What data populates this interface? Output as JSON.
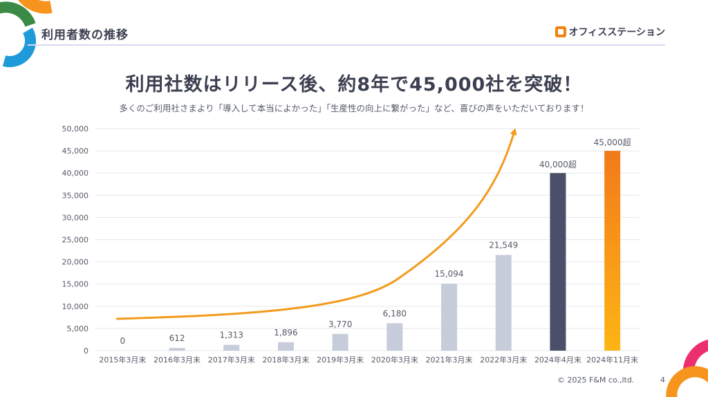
{
  "header": {
    "title": "利用者数の推移",
    "brand": "オフィスステーション"
  },
  "headline": "利用社数はリリース後、約8年で45,000社を突破！",
  "subline": "多くのご利用社さまより「導入して本当によかった」「生産性の向上に繋がった」など、喜びの声をいただいております！",
  "footer": {
    "copyright": "© 2025 F&M co.,ltd.",
    "page_number": "4"
  },
  "colors": {
    "bar_default": "#c7ccdb",
    "bar_2024_apr": "#4a5069",
    "bar_2024_nov_top": "#f27a1a",
    "bar_2024_nov_bottom": "#fdb515",
    "trend_arrow": "#f39a1a",
    "highlight_label": "#f08a2a",
    "text": "#3b3f50",
    "deco_orange": "#f7941d",
    "deco_green": "#3b8a45",
    "deco_blue": "#1f9ad8",
    "deco_pink": "#ec2f6e"
  },
  "chart_data": {
    "type": "bar",
    "categories": [
      "2015年3月末",
      "2016年3月末",
      "2017年3月末",
      "2018年3月末",
      "2019年3月末",
      "2020年3月末",
      "2021年3月末",
      "2022年3月末",
      "2024年4月末",
      "2024年11月末"
    ],
    "values": [
      0,
      612,
      1313,
      1896,
      3770,
      6180,
      15094,
      21549,
      40000,
      45000
    ],
    "value_labels": [
      "0",
      "612",
      "1,313",
      "1,896",
      "3,770",
      "6,180",
      "15,094",
      "21,549",
      "40,000超",
      "45,000超"
    ],
    "y_ticks": [
      "0",
      "5,000",
      "10,000",
      "15,000",
      "20,000",
      "25,000",
      "30,000",
      "35,000",
      "40,000",
      "45,000",
      "50,000"
    ],
    "ylim": [
      0,
      50000
    ],
    "grid": true,
    "annotation": "upward trend arrow across bars"
  }
}
